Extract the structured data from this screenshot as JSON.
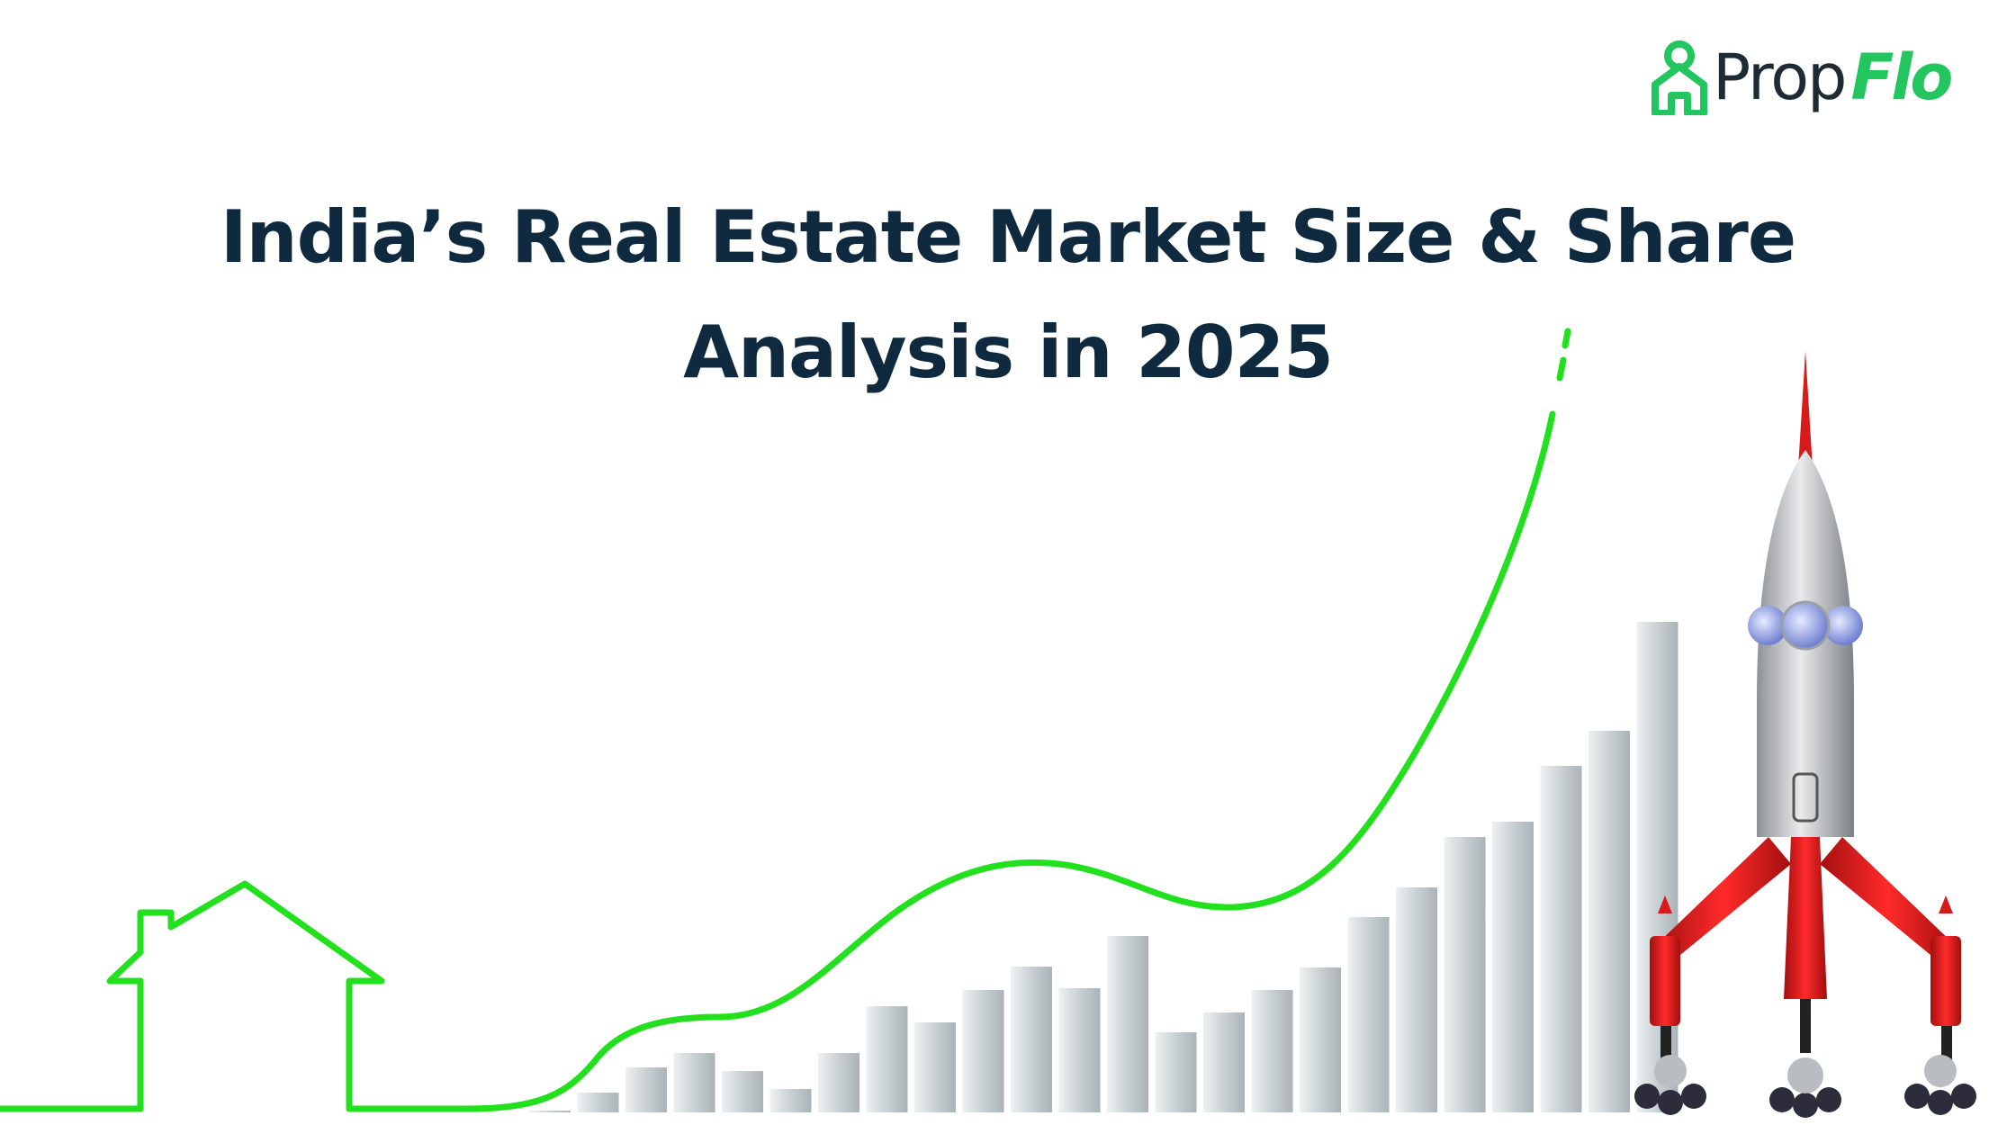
{
  "brand": {
    "name_part1": "Prop",
    "name_part2": "Flo",
    "color": "#22c55e"
  },
  "headline": {
    "line1": "India’s Real Estate Market Size & Share",
    "line2": "Analysis in 2025"
  },
  "illustration": {
    "bars": [
      2,
      22,
      50,
      66,
      46,
      26,
      66,
      118,
      100,
      136,
      162,
      138,
      196,
      89,
      111,
      136,
      161,
      217,
      250,
      306,
      323,
      385,
      424,
      545
    ],
    "line_color": "#22e01e",
    "bar_color": "#c9d0d3",
    "rocket_color": "#d71a1a"
  }
}
